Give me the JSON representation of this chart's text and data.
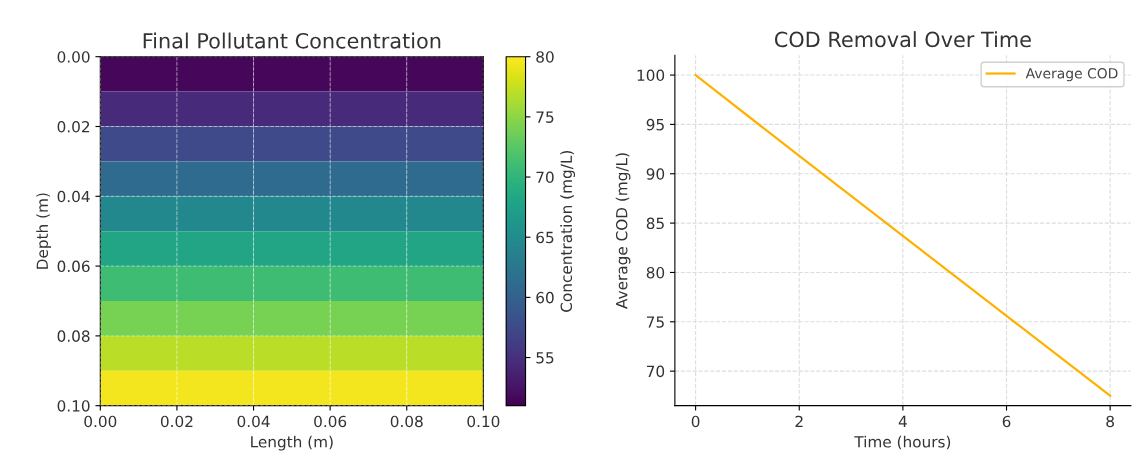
{
  "chart_data": [
    {
      "type": "heatmap",
      "title": "Final Pollutant Concentration",
      "xlabel": "Length (m)",
      "ylabel": "Depth (m)",
      "clabel": "Concentration (mg/L)",
      "cells": [
        [
          51.5,
          51.5,
          51.5,
          51.5,
          51.5
        ],
        [
          54.5,
          54.5,
          54.5,
          54.5,
          54.5
        ],
        [
          57.5,
          57.5,
          57.5,
          57.5,
          57.5
        ],
        [
          61,
          61,
          61,
          61,
          61
        ],
        [
          64.5,
          64.5,
          64.5,
          64.5,
          64.5
        ],
        [
          68,
          68,
          68,
          68,
          68
        ],
        [
          71,
          71,
          71,
          71,
          71
        ],
        [
          74,
          74,
          74,
          74,
          74
        ],
        [
          77,
          77,
          77,
          77,
          77
        ],
        [
          79.5,
          79.5,
          79.5,
          79.5,
          79.5
        ]
      ],
      "xlim": [
        0,
        0.1
      ],
      "xticks": [
        {
          "value": 0,
          "label": "0.00"
        },
        {
          "value": 0.02,
          "label": "0.02"
        },
        {
          "value": 0.04,
          "label": "0.04"
        },
        {
          "value": 0.06,
          "label": "0.06"
        },
        {
          "value": 0.08,
          "label": "0.08"
        },
        {
          "value": 0.1,
          "label": "0.10"
        }
      ],
      "ylim": [
        0.1,
        0
      ],
      "yticks": [
        {
          "value": 0,
          "label": "0.00"
        },
        {
          "value": 0.02,
          "label": "0.02"
        },
        {
          "value": 0.04,
          "label": "0.04"
        },
        {
          "value": 0.06,
          "label": "0.06"
        },
        {
          "value": 0.08,
          "label": "0.08"
        },
        {
          "value": 0.1,
          "label": "0.10"
        }
      ],
      "clim": [
        51,
        80
      ],
      "cticks": [
        55,
        60,
        65,
        70,
        75,
        80
      ],
      "grid": true
    },
    {
      "type": "line",
      "title": "COD Removal Over Time",
      "xlabel": "Time (hours)",
      "ylabel": "Average COD (mg/L)",
      "x": [
        0,
        2,
        4,
        6,
        8
      ],
      "series": [
        {
          "name": "Average COD",
          "color": "#ffb000",
          "values": [
            100,
            91.8,
            83.7,
            75.6,
            67.5
          ]
        }
      ],
      "xlim": [
        -0.4,
        8.4
      ],
      "xticks": [
        0,
        2,
        4,
        6,
        8
      ],
      "ylim": [
        66.5,
        102
      ],
      "yticks": [
        70,
        75,
        80,
        85,
        90,
        95,
        100
      ],
      "grid": true,
      "legend": "top right",
      "marker": "none",
      "line_style": "solid"
    }
  ]
}
